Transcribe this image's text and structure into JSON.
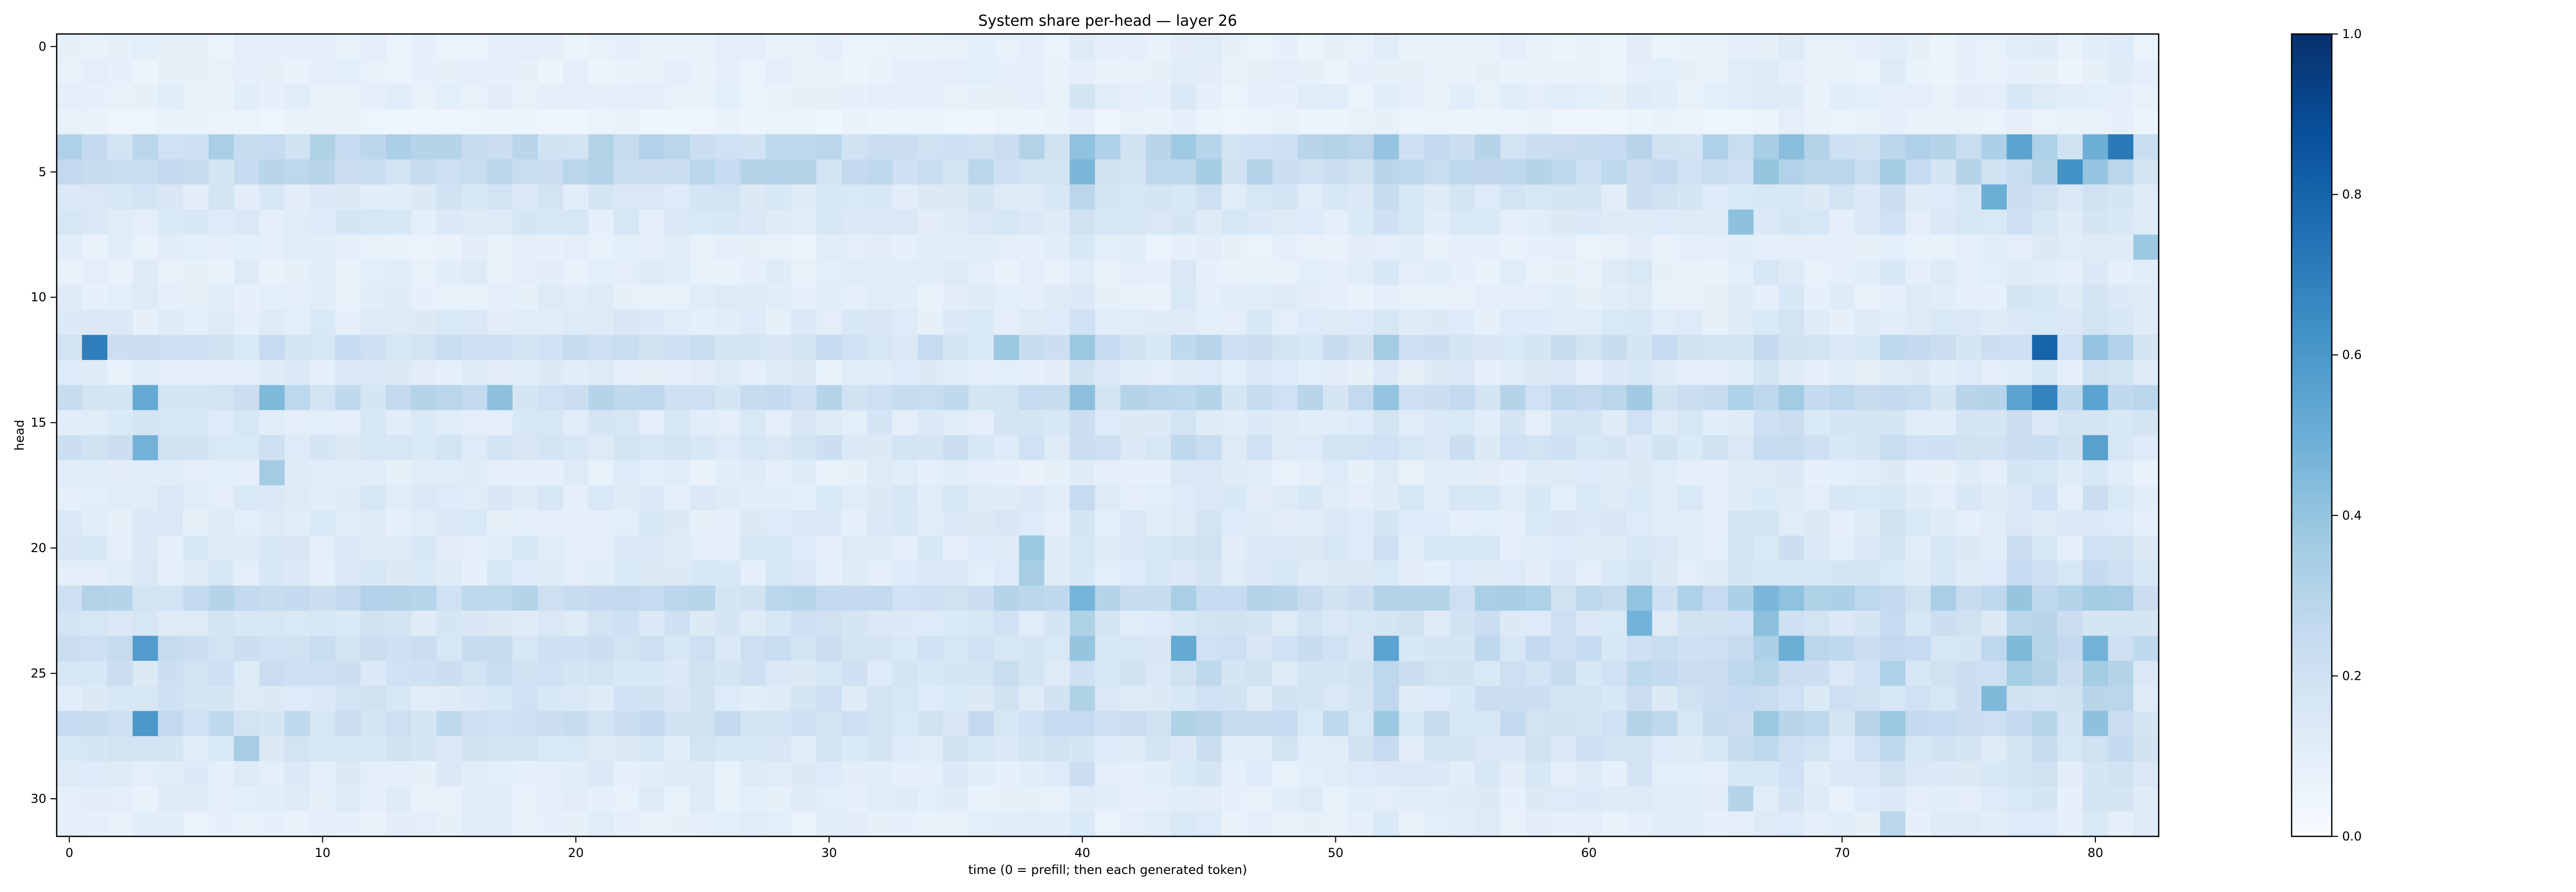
{
  "chart_data": {
    "type": "heatmap",
    "title": "System share per-head — layer 26",
    "xlabel": "time (0 = prefill; then each generated token)",
    "ylabel": "head",
    "x_ticks": [
      0,
      10,
      20,
      30,
      40,
      50,
      60,
      70,
      80
    ],
    "y_ticks": [
      0,
      5,
      10,
      15,
      20,
      25,
      30
    ],
    "x_range": [
      0,
      82
    ],
    "y_range": [
      0,
      31
    ],
    "n_heads": 32,
    "n_steps": 83,
    "colormap": "Blues",
    "colorbar": {
      "ticks": [
        "0.0",
        "0.2",
        "0.4",
        "0.6",
        "0.8",
        "1.0"
      ],
      "range": [
        0,
        1
      ]
    },
    "head_base_share": [
      0.08,
      0.08,
      0.09,
      0.06,
      0.26,
      0.24,
      0.15,
      0.13,
      0.09,
      0.1,
      0.1,
      0.12,
      0.2,
      0.11,
      0.24,
      0.14,
      0.17,
      0.1,
      0.13,
      0.12,
      0.13,
      0.13,
      0.25,
      0.16,
      0.2,
      0.18,
      0.16,
      0.21,
      0.15,
      0.11,
      0.1,
      0.09
    ],
    "step_modulation": {
      "40": 1.6,
      "44": 1.3,
      "45": 1.2,
      "52": 1.3,
      "62": 1.2,
      "66": 1.2,
      "67": 1.3,
      "68": 1.3,
      "72": 1.3,
      "77": 1.4,
      "78": 1.4,
      "80": 1.4,
      "81": 1.3
    },
    "highlight_cells": [
      {
        "head": 4,
        "step": 81,
        "value": 0.72
      },
      {
        "head": 4,
        "step": 77,
        "value": 0.55
      },
      {
        "head": 4,
        "step": 80,
        "value": 0.5
      },
      {
        "head": 4,
        "step": 52,
        "value": 0.4
      },
      {
        "head": 5,
        "step": 79,
        "value": 0.62
      },
      {
        "head": 5,
        "step": 80,
        "value": 0.4
      },
      {
        "head": 6,
        "step": 76,
        "value": 0.5
      },
      {
        "head": 7,
        "step": 66,
        "value": 0.42
      },
      {
        "head": 8,
        "step": 82,
        "value": 0.38
      },
      {
        "head": 12,
        "step": 1,
        "value": 0.7
      },
      {
        "head": 12,
        "step": 78,
        "value": 0.8
      },
      {
        "head": 12,
        "step": 80,
        "value": 0.4
      },
      {
        "head": 12,
        "step": 37,
        "value": 0.38
      },
      {
        "head": 12,
        "step": 52,
        "value": 0.36
      },
      {
        "head": 14,
        "step": 3,
        "value": 0.52
      },
      {
        "head": 14,
        "step": 8,
        "value": 0.45
      },
      {
        "head": 14,
        "step": 17,
        "value": 0.42
      },
      {
        "head": 14,
        "step": 77,
        "value": 0.55
      },
      {
        "head": 14,
        "step": 78,
        "value": 0.68
      },
      {
        "head": 14,
        "step": 80,
        "value": 0.55
      },
      {
        "head": 16,
        "step": 3,
        "value": 0.48
      },
      {
        "head": 16,
        "step": 80,
        "value": 0.56
      },
      {
        "head": 17,
        "step": 8,
        "value": 0.36
      },
      {
        "head": 20,
        "step": 38,
        "value": 0.38
      },
      {
        "head": 21,
        "step": 38,
        "value": 0.35
      },
      {
        "head": 23,
        "step": 62,
        "value": 0.48
      },
      {
        "head": 23,
        "step": 67,
        "value": 0.42
      },
      {
        "head": 24,
        "step": 3,
        "value": 0.58
      },
      {
        "head": 24,
        "step": 44,
        "value": 0.52
      },
      {
        "head": 24,
        "step": 52,
        "value": 0.55
      },
      {
        "head": 24,
        "step": 68,
        "value": 0.5
      },
      {
        "head": 24,
        "step": 77,
        "value": 0.45
      },
      {
        "head": 24,
        "step": 80,
        "value": 0.48
      },
      {
        "head": 26,
        "step": 76,
        "value": 0.45
      },
      {
        "head": 27,
        "step": 3,
        "value": 0.6
      },
      {
        "head": 27,
        "step": 52,
        "value": 0.38
      },
      {
        "head": 28,
        "step": 7,
        "value": 0.35
      },
      {
        "head": 30,
        "step": 66,
        "value": 0.3
      },
      {
        "head": 31,
        "step": 72,
        "value": 0.28
      }
    ]
  }
}
